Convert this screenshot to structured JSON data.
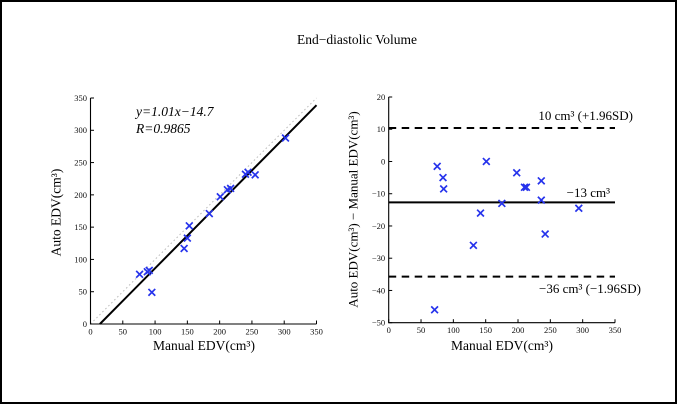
{
  "title": "End−diastolic Volume",
  "marker": {
    "shape": "x",
    "color": "#2633EC",
    "size": 3.4
  },
  "chart_data": [
    {
      "type": "scatter",
      "name": "linear-regression-plot",
      "xlabel": "Manual EDV(cm³)",
      "ylabel": "Auto EDV(cm³)",
      "xlim": [
        0,
        350
      ],
      "ylim": [
        0,
        350
      ],
      "xticks": [
        0,
        50,
        100,
        150,
        200,
        250,
        300,
        350
      ],
      "yticks": [
        0,
        50,
        100,
        150,
        200,
        250,
        300,
        350
      ],
      "grid": false,
      "legend": null,
      "points": [
        [
          76,
          77
        ],
        [
          88,
          81
        ],
        [
          91,
          83
        ],
        [
          95,
          49
        ],
        [
          145,
          117
        ],
        [
          150,
          133
        ],
        [
          153,
          152
        ],
        [
          184,
          171
        ],
        [
          201,
          197
        ],
        [
          212,
          208
        ],
        [
          217,
          210
        ],
        [
          240,
          232
        ],
        [
          244,
          235
        ],
        [
          255,
          231
        ],
        [
          302,
          288
        ]
      ],
      "regression": {
        "slope": 1.01,
        "intercept": -14.7,
        "r": 0.9865
      },
      "annotations": [
        "y=1.01x−14.7",
        "R=0.9865"
      ],
      "identity_line": true
    },
    {
      "type": "scatter",
      "name": "bland-altman-plot",
      "xlabel": "Manual EDV(cm³)",
      "ylabel": "Auto EDV(cm³) − Manual EDV(cm³)",
      "xlim": [
        0,
        350
      ],
      "ylim": [
        -50,
        20
      ],
      "xticks": [
        0,
        50,
        100,
        150,
        200,
        250,
        300,
        350
      ],
      "yticks": [
        20,
        10,
        0,
        -10,
        -20,
        -30,
        -40,
        -50
      ],
      "grid": false,
      "legend": null,
      "points": [
        [
          75,
          -1.5
        ],
        [
          84,
          -5
        ],
        [
          85,
          -8.5
        ],
        [
          151,
          0
        ],
        [
          198,
          -3.5
        ],
        [
          210,
          -8
        ],
        [
          213,
          -8
        ],
        [
          236,
          -6
        ],
        [
          175,
          -13
        ],
        [
          236,
          -12
        ],
        [
          142,
          -16
        ],
        [
          294,
          -14.5
        ],
        [
          242,
          -22.5
        ],
        [
          131,
          -26
        ],
        [
          71,
          -46
        ]
      ],
      "lines": [
        {
          "value": 10.4,
          "style": "dashed",
          "label": "10 cm³ (+1.96SD)"
        },
        {
          "value": -12.7,
          "style": "solid",
          "label": "−13 cm³"
        },
        {
          "value": -35.7,
          "style": "dashed",
          "label": "−36 cm³ (−1.96SD)"
        }
      ]
    }
  ]
}
